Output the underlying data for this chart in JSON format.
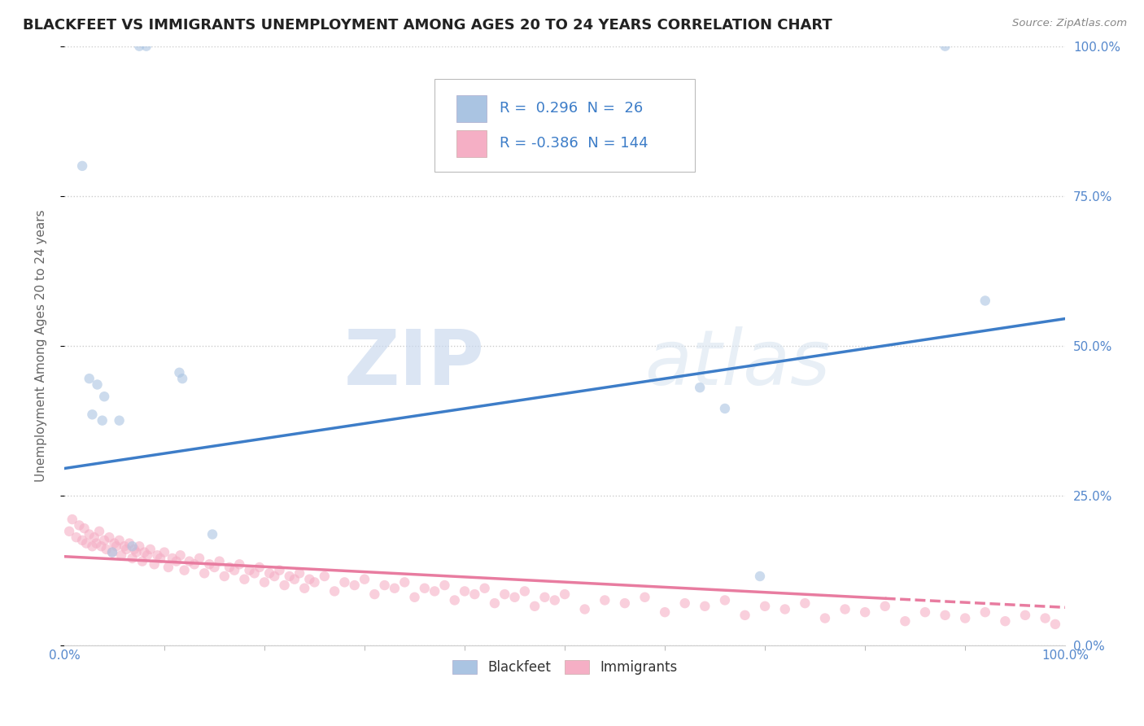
{
  "title": "BLACKFEET VS IMMIGRANTS UNEMPLOYMENT AMONG AGES 20 TO 24 YEARS CORRELATION CHART",
  "source": "Source: ZipAtlas.com",
  "ylabel": "Unemployment Among Ages 20 to 24 years",
  "xlim": [
    0.0,
    1.0
  ],
  "ylim": [
    0.0,
    1.0
  ],
  "yticks_right": [
    0.0,
    0.25,
    0.5,
    0.75,
    1.0
  ],
  "ytick_labels_right": [
    "0.0%",
    "25.0%",
    "50.0%",
    "75.0%",
    "100.0%"
  ],
  "xtick_labels": [
    "0.0%",
    "100.0%"
  ],
  "grid_color": "#cccccc",
  "background_color": "#ffffff",
  "watermark_zip": "ZIP",
  "watermark_atlas": "atlas",
  "legend_R1": "0.296",
  "legend_N1": "26",
  "legend_R2": "-0.386",
  "legend_N2": "144",
  "blue_color": "#aac4e2",
  "pink_color": "#f5afc5",
  "blue_line_color": "#3d7dc8",
  "pink_line_color": "#e87ca0",
  "blue_trend_x0": 0.0,
  "blue_trend_x1": 1.0,
  "blue_trend_y0": 0.295,
  "blue_trend_y1": 0.545,
  "pink_trend_solid_x0": 0.0,
  "pink_trend_solid_x1": 0.82,
  "pink_trend_y0": 0.148,
  "pink_trend_y1": 0.078,
  "pink_trend_dash_x0": 0.82,
  "pink_trend_dash_x1": 1.0,
  "pink_trend_dash_y0": 0.078,
  "pink_trend_dash_y1": 0.063,
  "blackfeet_x": [
    0.075,
    0.082,
    0.018,
    0.025,
    0.033,
    0.04,
    0.028,
    0.038,
    0.055,
    0.115,
    0.118,
    0.048,
    0.068,
    0.148,
    0.88,
    0.92,
    0.635,
    0.66,
    0.695
  ],
  "blackfeet_y": [
    1.0,
    1.0,
    0.8,
    0.445,
    0.435,
    0.415,
    0.385,
    0.375,
    0.375,
    0.455,
    0.445,
    0.155,
    0.165,
    0.185,
    1.0,
    0.575,
    0.43,
    0.395,
    0.115
  ],
  "immigrants_x": [
    0.005,
    0.008,
    0.012,
    0.015,
    0.018,
    0.02,
    0.022,
    0.025,
    0.028,
    0.03,
    0.032,
    0.035,
    0.037,
    0.04,
    0.042,
    0.045,
    0.048,
    0.05,
    0.052,
    0.055,
    0.057,
    0.06,
    0.062,
    0.065,
    0.068,
    0.07,
    0.072,
    0.075,
    0.078,
    0.08,
    0.083,
    0.086,
    0.09,
    0.093,
    0.096,
    0.1,
    0.104,
    0.108,
    0.112,
    0.116,
    0.12,
    0.125,
    0.13,
    0.135,
    0.14,
    0.145,
    0.15,
    0.155,
    0.16,
    0.165,
    0.17,
    0.175,
    0.18,
    0.185,
    0.19,
    0.195,
    0.2,
    0.205,
    0.21,
    0.215,
    0.22,
    0.225,
    0.23,
    0.235,
    0.24,
    0.245,
    0.25,
    0.26,
    0.27,
    0.28,
    0.29,
    0.3,
    0.31,
    0.32,
    0.33,
    0.34,
    0.35,
    0.36,
    0.37,
    0.38,
    0.39,
    0.4,
    0.41,
    0.42,
    0.43,
    0.44,
    0.45,
    0.46,
    0.47,
    0.48,
    0.49,
    0.5,
    0.52,
    0.54,
    0.56,
    0.58,
    0.6,
    0.62,
    0.64,
    0.66,
    0.68,
    0.7,
    0.72,
    0.74,
    0.76,
    0.78,
    0.8,
    0.82,
    0.84,
    0.86,
    0.88,
    0.9,
    0.92,
    0.94,
    0.96,
    0.98,
    0.99
  ],
  "immigrants_y": [
    0.19,
    0.21,
    0.18,
    0.2,
    0.175,
    0.195,
    0.17,
    0.185,
    0.165,
    0.18,
    0.17,
    0.19,
    0.165,
    0.175,
    0.16,
    0.18,
    0.155,
    0.17,
    0.165,
    0.175,
    0.15,
    0.165,
    0.16,
    0.17,
    0.145,
    0.16,
    0.155,
    0.165,
    0.14,
    0.155,
    0.15,
    0.16,
    0.135,
    0.15,
    0.145,
    0.155,
    0.13,
    0.145,
    0.14,
    0.15,
    0.125,
    0.14,
    0.135,
    0.145,
    0.12,
    0.135,
    0.13,
    0.14,
    0.115,
    0.13,
    0.125,
    0.135,
    0.11,
    0.125,
    0.12,
    0.13,
    0.105,
    0.12,
    0.115,
    0.125,
    0.1,
    0.115,
    0.11,
    0.12,
    0.095,
    0.11,
    0.105,
    0.115,
    0.09,
    0.105,
    0.1,
    0.11,
    0.085,
    0.1,
    0.095,
    0.105,
    0.08,
    0.095,
    0.09,
    0.1,
    0.075,
    0.09,
    0.085,
    0.095,
    0.07,
    0.085,
    0.08,
    0.09,
    0.065,
    0.08,
    0.075,
    0.085,
    0.06,
    0.075,
    0.07,
    0.08,
    0.055,
    0.07,
    0.065,
    0.075,
    0.05,
    0.065,
    0.06,
    0.07,
    0.045,
    0.06,
    0.055,
    0.065,
    0.04,
    0.055,
    0.05,
    0.045,
    0.055,
    0.04,
    0.05,
    0.045,
    0.035
  ],
  "title_fontsize": 13,
  "axis_label_fontsize": 11,
  "tick_fontsize": 11,
  "legend_fontsize": 13,
  "watermark_fontsize_zip": 68,
  "watermark_fontsize_atlas": 68,
  "watermark_alpha": 0.13,
  "scatter_size": 80,
  "scatter_alpha": 0.6,
  "tick_color": "#5588cc"
}
